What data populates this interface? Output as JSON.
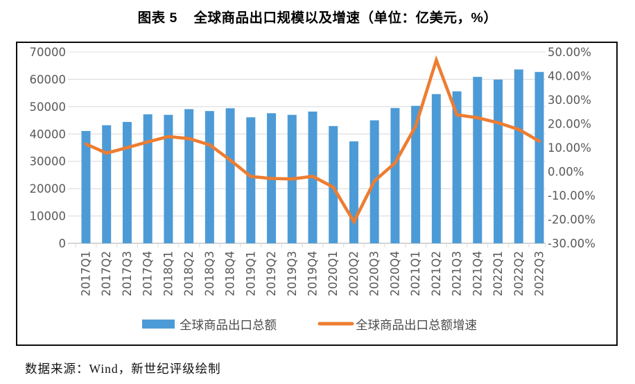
{
  "title": "图表 5    全球商品出口规模以及增速（单位：亿美元，%）",
  "source": "数据来源：Wind，新世纪评级绘制",
  "accent_colors": {
    "bar_blue": "#4D9BD6",
    "line_orange": "#ED7D31",
    "axis_text": "#595959",
    "gridline": "#DCDCDC",
    "axis_line": "#C6C6C6"
  },
  "chart_data": {
    "type": "combo",
    "title": "图表 5 全球商品出口规模以及增速（单位：亿美元，%）",
    "categories": [
      "2017Q1",
      "2017Q2",
      "2017Q3",
      "2017Q4",
      "2018Q1",
      "2018Q2",
      "2018Q3",
      "2018Q4",
      "2019Q1",
      "2019Q2",
      "2019Q3",
      "2019Q4",
      "2020Q1",
      "2020Q2",
      "2020Q3",
      "2020Q4",
      "2021Q1",
      "2021Q2",
      "2021Q3",
      "2021Q4",
      "2022Q1",
      "2022Q2",
      "2022Q3"
    ],
    "series": [
      {
        "name": "全球商品出口总额",
        "type": "bar",
        "axis": "left",
        "color": "#4D9BD6",
        "values": [
          41100,
          43200,
          44400,
          47200,
          47000,
          49100,
          48400,
          49400,
          46100,
          47600,
          47000,
          48200,
          42900,
          37300,
          45000,
          49500,
          50300,
          54600,
          55600,
          60900,
          59900,
          63600,
          62700
        ]
      },
      {
        "name": "全球商品出口总额增速",
        "type": "line",
        "axis": "right",
        "color": "#ED7D31",
        "values": [
          11.5,
          7.7,
          10.0,
          12.4,
          14.6,
          13.8,
          11.2,
          4.8,
          -2.1,
          -2.9,
          -3.1,
          -2.0,
          -6.5,
          -21.0,
          -3.9,
          3.6,
          19.0,
          46.6,
          23.7,
          22.5,
          20.4,
          17.6,
          12.7
        ]
      }
    ],
    "left_axis": {
      "min": 0,
      "max": 70000,
      "step": 10000,
      "ticks": [
        "70000",
        "60000",
        "50000",
        "40000",
        "30000",
        "20000",
        "10000",
        "0"
      ]
    },
    "right_axis": {
      "min": -30,
      "max": 50,
      "step": 10,
      "ticks": [
        "50.00%",
        "40.00%",
        "30.00%",
        "20.00%",
        "10.00%",
        "0.00%",
        "-10.00%",
        "-20.00%",
        "-30.00%"
      ]
    },
    "grid": true,
    "legend_position": "bottom"
  }
}
